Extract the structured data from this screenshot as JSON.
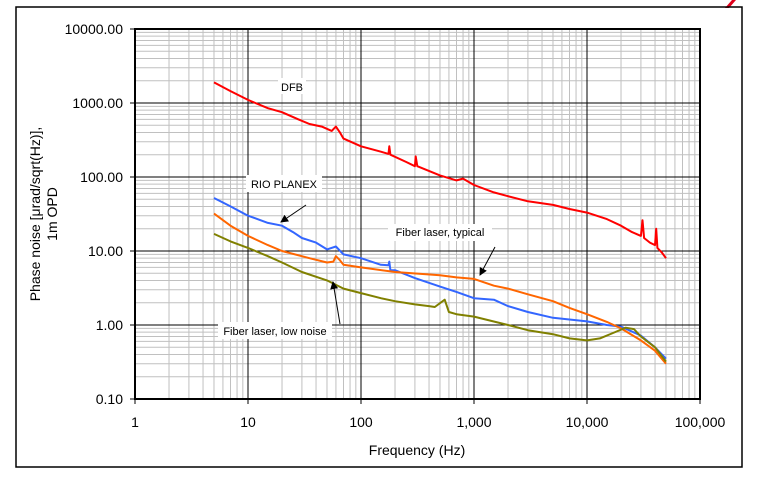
{
  "chart_data": {
    "type": "line",
    "xscale": "log",
    "yscale": "log",
    "xlim": [
      1,
      100000
    ],
    "ylim": [
      0.1,
      10000
    ],
    "xlabel": "Frequency (Hz)",
    "ylabel_lines": [
      "Phase noise [μrad/sqrt(Hz)],",
      "1m OPD"
    ],
    "x_ticks": [
      {
        "value": 1,
        "label": "1"
      },
      {
        "value": 10,
        "label": "10"
      },
      {
        "value": 100,
        "label": "100"
      },
      {
        "value": 1000,
        "label": "1,000"
      },
      {
        "value": 10000,
        "label": "10,000"
      },
      {
        "value": 100000,
        "label": "100,000"
      }
    ],
    "y_ticks": [
      {
        "value": 10000,
        "label": "10000.00"
      },
      {
        "value": 1000,
        "label": "1000.00"
      },
      {
        "value": 100,
        "label": "100.00"
      },
      {
        "value": 10,
        "label": "10.00"
      },
      {
        "value": 1,
        "label": "1.00"
      },
      {
        "value": 0.1,
        "label": "0.10"
      }
    ],
    "grid": true,
    "series": [
      {
        "name": "DFB",
        "color": "#ff0000",
        "points": [
          [
            5,
            1900
          ],
          [
            7,
            1450
          ],
          [
            10,
            1100
          ],
          [
            15,
            850
          ],
          [
            20,
            750
          ],
          [
            28,
            600
          ],
          [
            35,
            520
          ],
          [
            45,
            480
          ],
          [
            55,
            420
          ],
          [
            60,
            480
          ],
          [
            65,
            400
          ],
          [
            70,
            330
          ],
          [
            100,
            260
          ],
          [
            150,
            220
          ],
          [
            175,
            205
          ],
          [
            178,
            260
          ],
          [
            182,
            200
          ],
          [
            250,
            160
          ],
          [
            300,
            140
          ],
          [
            305,
            190
          ],
          [
            315,
            140
          ],
          [
            500,
            105
          ],
          [
            700,
            90
          ],
          [
            800,
            95
          ],
          [
            1000,
            78
          ],
          [
            1500,
            62
          ],
          [
            2000,
            55
          ],
          [
            3000,
            47
          ],
          [
            5000,
            42
          ],
          [
            7000,
            37
          ],
          [
            10000,
            33
          ],
          [
            15000,
            27
          ],
          [
            20000,
            22
          ],
          [
            25000,
            18
          ],
          [
            30000,
            16
          ],
          [
            31000,
            26
          ],
          [
            32000,
            15
          ],
          [
            36000,
            13
          ],
          [
            40000,
            12
          ],
          [
            41000,
            20
          ],
          [
            42000,
            11
          ],
          [
            46000,
            9.5
          ],
          [
            50000,
            8
          ]
        ]
      },
      {
        "name": "RIO PLANEX",
        "color": "#3366ff",
        "points": [
          [
            5,
            52
          ],
          [
            7,
            40
          ],
          [
            10,
            30
          ],
          [
            15,
            24
          ],
          [
            20,
            22
          ],
          [
            25,
            18
          ],
          [
            30,
            15
          ],
          [
            40,
            13
          ],
          [
            50,
            10.5
          ],
          [
            60,
            11.5
          ],
          [
            70,
            9
          ],
          [
            100,
            8
          ],
          [
            150,
            6.5
          ],
          [
            175,
            6.4
          ],
          [
            178,
            7.2
          ],
          [
            182,
            5.5
          ],
          [
            200,
            5.5
          ],
          [
            300,
            4.3
          ],
          [
            500,
            3.3
          ],
          [
            700,
            2.8
          ],
          [
            1000,
            2.3
          ],
          [
            1500,
            2.2
          ],
          [
            2000,
            1.8
          ],
          [
            3000,
            1.5
          ],
          [
            5000,
            1.25
          ],
          [
            10000,
            1.12
          ],
          [
            15000,
            1.0
          ],
          [
            20000,
            0.95
          ],
          [
            30000,
            0.72
          ],
          [
            40000,
            0.5
          ],
          [
            50000,
            0.35
          ]
        ]
      },
      {
        "name": "Fiber laser, typical",
        "color": "#ff6600",
        "points": [
          [
            5,
            32
          ],
          [
            7,
            22
          ],
          [
            10,
            16
          ],
          [
            15,
            12
          ],
          [
            20,
            10
          ],
          [
            35,
            8
          ],
          [
            50,
            7
          ],
          [
            57,
            7.2
          ],
          [
            60,
            8.5
          ],
          [
            65,
            7.5
          ],
          [
            70,
            6.5
          ],
          [
            100,
            6
          ],
          [
            200,
            5.2
          ],
          [
            500,
            4.7
          ],
          [
            700,
            4.4
          ],
          [
            1000,
            4.2
          ],
          [
            1500,
            3.4
          ],
          [
            2000,
            3.1
          ],
          [
            3000,
            2.6
          ],
          [
            5000,
            2.1
          ],
          [
            7000,
            1.7
          ],
          [
            10000,
            1.4
          ],
          [
            15000,
            1.1
          ],
          [
            20000,
            0.9
          ],
          [
            30000,
            0.62
          ],
          [
            40000,
            0.45
          ],
          [
            50000,
            0.3
          ]
        ]
      },
      {
        "name": "Fiber laser, low noise",
        "color": "#808000",
        "points": [
          [
            5,
            17
          ],
          [
            7,
            13.5
          ],
          [
            10,
            11
          ],
          [
            15,
            8.5
          ],
          [
            20,
            7
          ],
          [
            30,
            5.2
          ],
          [
            50,
            4
          ],
          [
            70,
            3.1
          ],
          [
            100,
            2.7
          ],
          [
            150,
            2.3
          ],
          [
            200,
            2.1
          ],
          [
            300,
            1.9
          ],
          [
            400,
            1.8
          ],
          [
            450,
            1.75
          ],
          [
            550,
            2.2
          ],
          [
            600,
            1.5
          ],
          [
            700,
            1.4
          ],
          [
            1000,
            1.3
          ],
          [
            2000,
            1.0
          ],
          [
            3000,
            0.85
          ],
          [
            5000,
            0.75
          ],
          [
            7000,
            0.66
          ],
          [
            10000,
            0.62
          ],
          [
            13000,
            0.66
          ],
          [
            17000,
            0.78
          ],
          [
            22000,
            0.92
          ],
          [
            26000,
            0.88
          ],
          [
            30000,
            0.7
          ],
          [
            40000,
            0.5
          ],
          [
            50000,
            0.32
          ]
        ]
      }
    ],
    "annotations": [
      {
        "text": "DFB",
        "target": "DFB"
      },
      {
        "text": "RIO PLANEX",
        "target": "RIO PLANEX"
      },
      {
        "text": "Fiber laser, typical",
        "target": "Fiber laser, typical"
      },
      {
        "text": "Fiber laser, low noise",
        "target": "Fiber laser, low noise"
      }
    ]
  }
}
